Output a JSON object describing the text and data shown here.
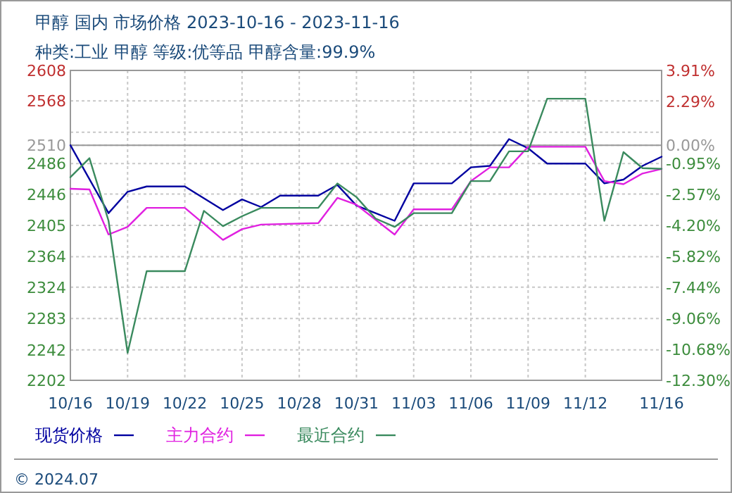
{
  "chart_data": {
    "type": "line",
    "title": "甲醇 国内 市场价格 2023-10-16 - 2023-11-16",
    "subtitle": "种类:工业 甲醇 等级:优等品 甲醇含量:99.9%",
    "annotations": [
      "© 2024.07"
    ],
    "xlim": [
      "2023-10-16",
      "2023-11-16"
    ],
    "xticks": [
      {
        "value": "2023-10-16",
        "label": "10/16"
      },
      {
        "value": "2023-10-19",
        "label": "10/19"
      },
      {
        "value": "2023-10-22",
        "label": "10/22"
      },
      {
        "value": "2023-10-25",
        "label": "10/25"
      },
      {
        "value": "2023-10-28",
        "label": "10/28"
      },
      {
        "value": "2023-10-31",
        "label": "10/31"
      },
      {
        "value": "2023-11-03",
        "label": "11/03"
      },
      {
        "value": "2023-11-06",
        "label": "11/06"
      },
      {
        "value": "2023-11-09",
        "label": "11/09"
      },
      {
        "value": "2023-11-12",
        "label": "11/12"
      },
      {
        "value": "2023-11-16",
        "label": "11/16"
      }
    ],
    "ylim": [
      2202,
      2608
    ],
    "yticks": [
      2202,
      2242,
      2283,
      2324,
      2364,
      2405,
      2446,
      2486,
      2510,
      {
        "value": 2527,
        "label": null
      },
      2568,
      2608
    ],
    "y2lim": [
      -12.3,
      3.91
    ],
    "y2ticks": [
      {
        "value": -12.3,
        "label": "-12.30%"
      },
      {
        "value": -10.68,
        "label": "-10.68%"
      },
      {
        "value": -9.06,
        "label": "-9.06%"
      },
      {
        "value": -7.44,
        "label": "-7.44%"
      },
      {
        "value": -5.82,
        "label": "-5.82%"
      },
      {
        "value": -4.2,
        "label": "-4.20%"
      },
      {
        "value": -2.57,
        "label": "-2.57%"
      },
      {
        "value": -0.95,
        "label": "-0.95%"
      },
      {
        "value": 0,
        "label": "0.00%"
      },
      {
        "value": 2.29,
        "label": "2.29%"
      },
      {
        "value": 3.91,
        "label": "3.91%"
      }
    ],
    "ref_lines": [
      {
        "axis": "y",
        "value": 2510,
        "color": "#999999"
      }
    ],
    "grid": true,
    "legend": "bottom",
    "marker": "none",
    "line_style": "solid",
    "series": [
      {
        "name": "现货价格",
        "color": "#0000a0",
        "x": [
          "2023-10-16",
          "2023-10-18",
          "2023-10-19",
          "2023-10-20",
          "2023-10-22",
          "2023-10-24",
          "2023-10-25",
          "2023-10-26",
          "2023-10-27",
          "2023-10-29",
          "2023-10-30",
          "2023-10-31",
          "2023-11-01",
          "2023-11-02",
          "2023-11-03",
          "2023-11-05",
          "2023-11-06",
          "2023-11-07",
          "2023-11-08",
          "2023-11-09",
          "2023-11-10",
          "2023-11-12",
          "2023-11-13",
          "2023-11-14",
          "2023-11-15",
          "2023-11-16"
        ],
        "values": [
          2510,
          2421,
          2449,
          2456,
          2456,
          2425,
          2439,
          2429,
          2444,
          2444,
          2458,
          2431,
          2421,
          2411,
          2460,
          2460,
          2481,
          2483,
          2518,
          2506,
          2486,
          2486,
          2460,
          2465,
          2483,
          2495
        ]
      },
      {
        "name": "主力合约",
        "color": "#e020e0",
        "x": [
          "2023-10-16",
          "2023-10-17",
          "2023-10-18",
          "2023-10-19",
          "2023-10-20",
          "2023-10-22",
          "2023-10-24",
          "2023-10-25",
          "2023-10-26",
          "2023-10-29",
          "2023-10-30",
          "2023-10-31",
          "2023-11-02",
          "2023-11-03",
          "2023-11-05",
          "2023-11-06",
          "2023-11-07",
          "2023-11-08",
          "2023-11-09",
          "2023-11-12",
          "2023-11-13",
          "2023-11-14",
          "2023-11-15",
          "2023-11-16"
        ],
        "values": [
          2453,
          2452,
          2393,
          2403,
          2428,
          2428,
          2386,
          2400,
          2406,
          2408,
          2441,
          2432,
          2393,
          2426,
          2426,
          2463,
          2481,
          2481,
          2508,
          2508,
          2463,
          2459,
          2473,
          2479
        ]
      },
      {
        "name": "最近合约",
        "color": "#3a8a5e",
        "x": [
          "2023-10-16",
          "2023-10-17",
          "2023-10-18",
          "2023-10-19",
          "2023-10-20",
          "2023-10-22",
          "2023-10-23",
          "2023-10-24",
          "2023-10-25",
          "2023-10-26",
          "2023-10-29",
          "2023-10-30",
          "2023-10-31",
          "2023-11-01",
          "2023-11-02",
          "2023-11-03",
          "2023-11-05",
          "2023-11-06",
          "2023-11-07",
          "2023-11-08",
          "2023-11-09",
          "2023-11-10",
          "2023-11-12",
          "2023-11-13",
          "2023-11-14",
          "2023-11-15",
          "2023-11-16"
        ],
        "values": [
          2468,
          2493,
          2411,
          2238,
          2345,
          2345,
          2424,
          2404,
          2417,
          2428,
          2428,
          2460,
          2442,
          2414,
          2403,
          2421,
          2421,
          2463,
          2463,
          2502,
          2502,
          2571,
          2571,
          2411,
          2501,
          2480,
          2479
        ]
      }
    ]
  }
}
